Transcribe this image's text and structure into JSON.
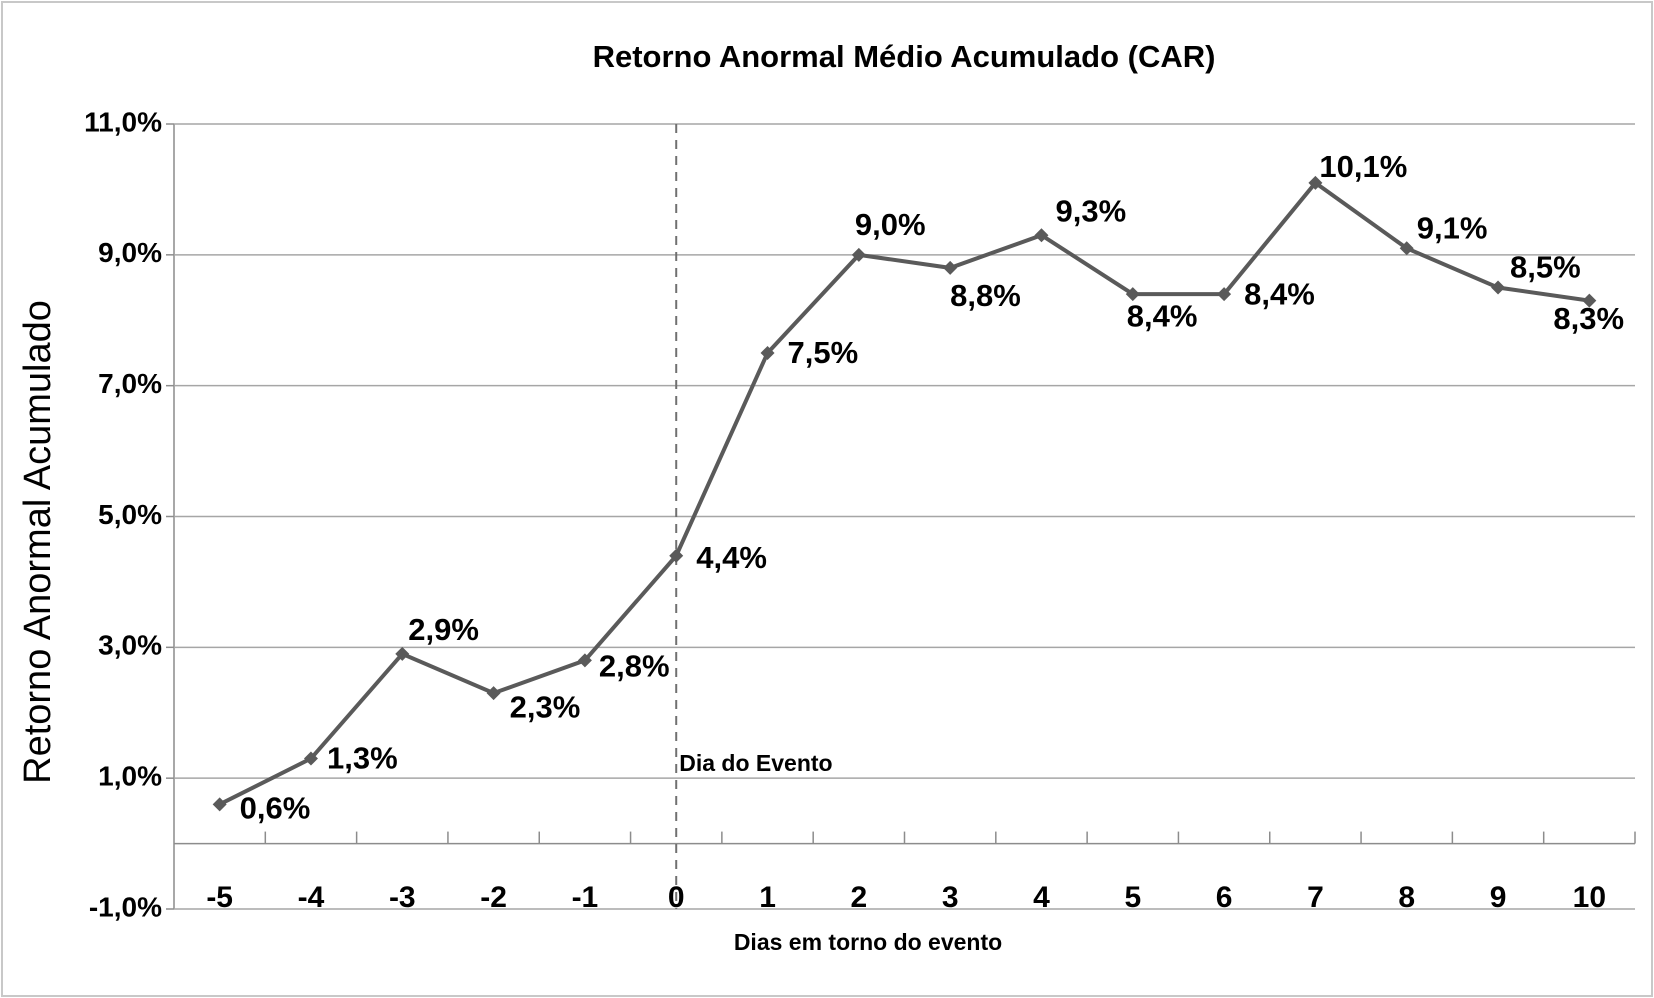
{
  "chart_data": {
    "type": "line",
    "title": "Retorno Anormal Médio Acumulado (CAR)",
    "xlabel": "Dias em torno do evento",
    "ylabel": "Retorno Anormal Acumulado",
    "x": [
      -5,
      -4,
      -3,
      -2,
      -1,
      0,
      1,
      2,
      3,
      4,
      5,
      6,
      7,
      8,
      9,
      10
    ],
    "series": [
      {
        "name": "CAR",
        "color": "#5a5a5a",
        "values": [
          0.6,
          1.3,
          2.9,
          2.3,
          2.8,
          4.4,
          7.5,
          9.0,
          8.8,
          9.3,
          8.4,
          8.4,
          10.1,
          9.1,
          8.5,
          8.3
        ],
        "value_labels": [
          "0,6%",
          "1,3%",
          "2,9%",
          "2,3%",
          "2,8%",
          "4,4%",
          "7,5%",
          "9,0%",
          "8,8%",
          "9,3%",
          "8,4%",
          "8,4%",
          "10,1%",
          "9,1%",
          "8,5%",
          "8,3%"
        ]
      }
    ],
    "xlim": [
      -5.5,
      10.5
    ],
    "xticks": [
      -5,
      -4,
      -3,
      -2,
      -1,
      0,
      1,
      2,
      3,
      4,
      5,
      6,
      7,
      8,
      9,
      10
    ],
    "ylim": [
      -1,
      11
    ],
    "yticks": [
      {
        "value": -1,
        "label": "-1,0%"
      },
      {
        "value": 1,
        "label": "1,0%"
      },
      {
        "value": 3,
        "label": "3,0%"
      },
      {
        "value": 5,
        "label": "5,0%"
      },
      {
        "value": 7,
        "label": "7,0%"
      },
      {
        "value": 9,
        "label": "9,0%"
      },
      {
        "value": 11,
        "label": "11,0%"
      }
    ],
    "grid": true,
    "annotation": {
      "text": "Dia do Evento",
      "x": 0
    }
  }
}
